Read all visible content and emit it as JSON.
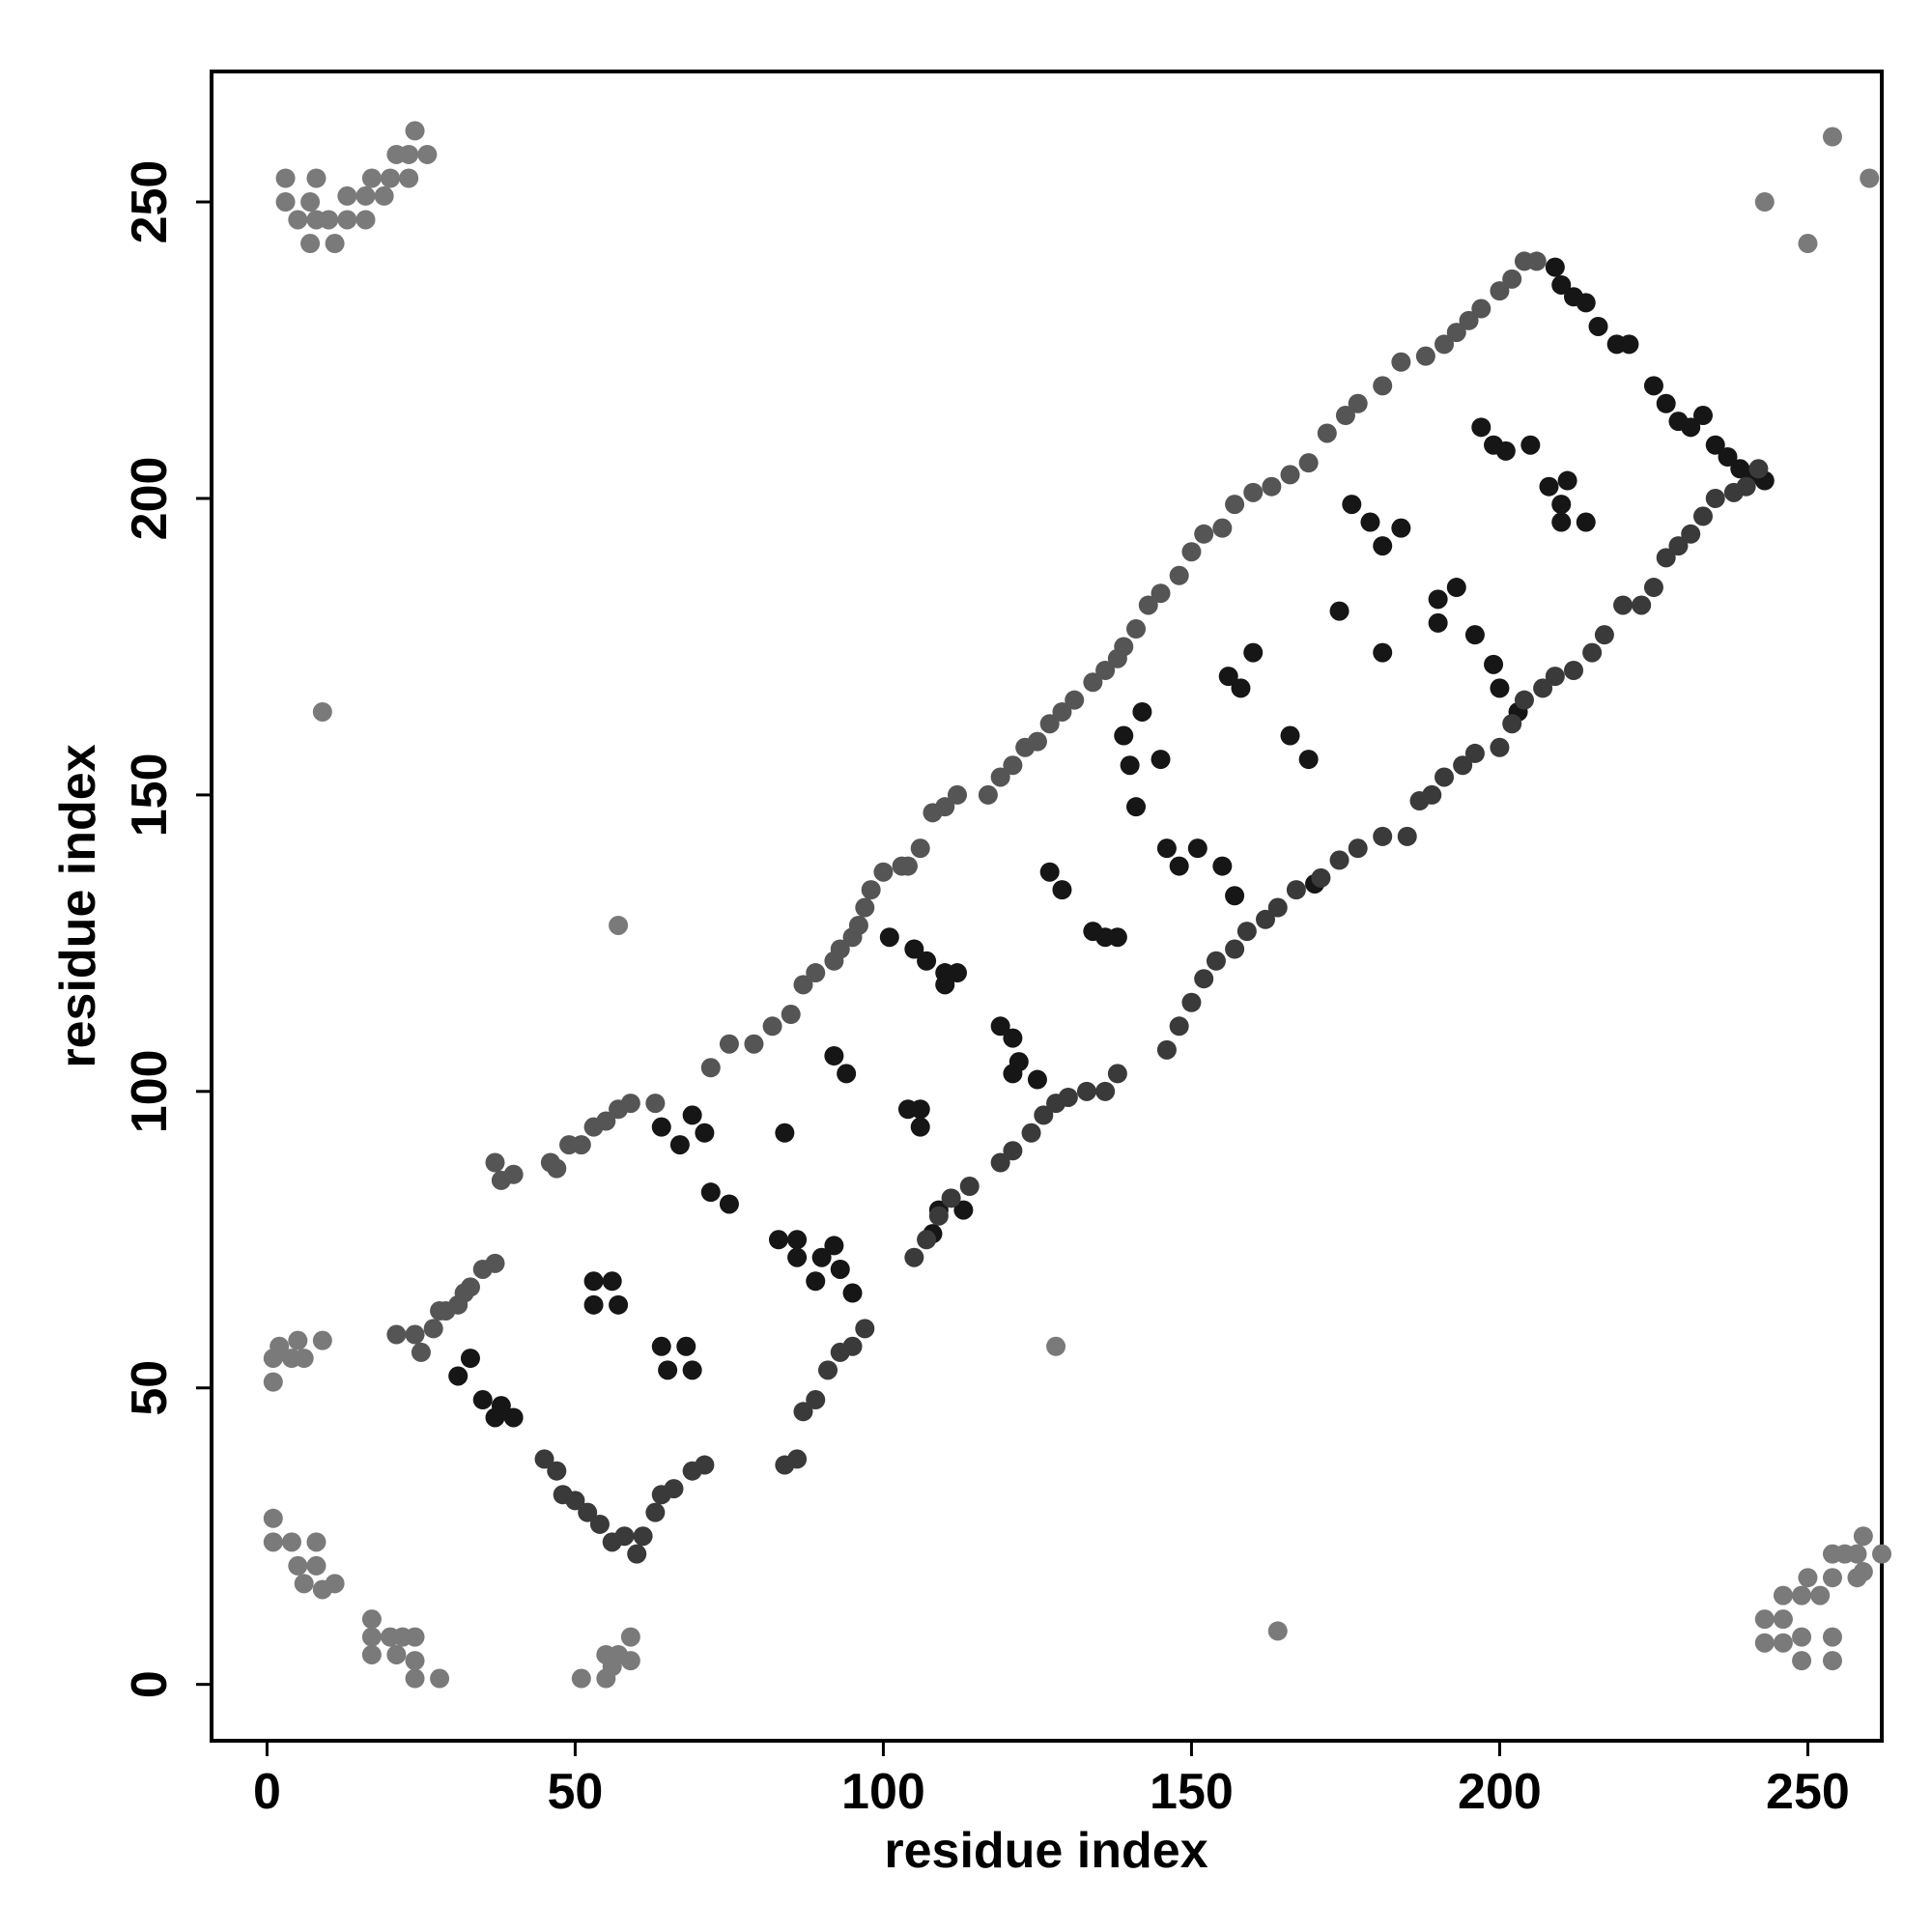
{
  "chart_data": {
    "type": "scatter",
    "xlabel": "residue index",
    "ylabel": "residue index",
    "xlim": [
      -9,
      262
    ],
    "ylim": [
      -9.5,
      272
    ],
    "xticks": [
      0,
      50,
      100,
      150,
      200,
      250
    ],
    "yticks": [
      0,
      50,
      100,
      150,
      200,
      250
    ],
    "series": [
      {
        "color": "#161616",
        "x": [
          31,
          33,
          35,
          37,
          38,
          40,
          53,
          53,
          56,
          57,
          64,
          65,
          68,
          69,
          64,
          67,
          69,
          71,
          72,
          75,
          83,
          86,
          86,
          89,
          90,
          92,
          93,
          95,
          84,
          92,
          94,
          104,
          106,
          106,
          108,
          109,
          113,
          101,
          105,
          107,
          110,
          112,
          110,
          119,
          121,
          122,
          125,
          121,
          127,
          129,
          134,
          136,
          138,
          139,
          140,
          141,
          145,
          142,
          146,
          148,
          151,
          155,
          157,
          156,
          158,
          160,
          166,
          169,
          170,
          174,
          181,
          176,
          179,
          181,
          184,
          190,
          190,
          193,
          196,
          199,
          200,
          203,
          197,
          199,
          201,
          205,
          208,
          210,
          211,
          210,
          214,
          209,
          210,
          212,
          214,
          216,
          219,
          221,
          225,
          227,
          229,
          231,
          233,
          235,
          237,
          239,
          241,
          243
        ],
        "values": [
          52,
          55,
          48,
          45,
          47,
          45,
          68,
          64,
          68,
          64,
          57,
          53,
          57,
          53,
          94,
          91,
          96,
          93,
          83,
          81,
          75,
          75,
          72,
          68,
          72,
          74,
          70,
          66,
          93,
          106,
          103,
          97,
          94,
          97,
          76,
          80,
          80,
          126,
          124,
          122,
          120,
          120,
          118,
          111,
          109,
          105,
          102,
          103,
          137,
          134,
          127,
          126,
          126,
          160,
          155,
          148,
          156,
          164,
          141,
          138,
          141,
          138,
          133,
          170,
          168,
          174,
          160,
          156,
          135,
          181,
          174,
          199,
          196,
          192,
          195,
          183,
          179,
          185,
          177,
          172,
          168,
          164,
          212,
          209,
          208,
          209,
          202,
          199,
          203,
          196,
          196,
          239,
          236,
          234,
          233,
          229,
          226,
          226,
          219,
          216,
          213,
          212,
          214,
          209,
          207,
          205,
          204,
          203
        ]
      },
      {
        "color": "#3a3a3a",
        "x": [
          45,
          47,
          48,
          50,
          52,
          54,
          56,
          58,
          60,
          61,
          63,
          64,
          66,
          69,
          71,
          84,
          86,
          87,
          89,
          91,
          93,
          95,
          97,
          105,
          107,
          109,
          111,
          114,
          119,
          121,
          124,
          126,
          128,
          130,
          133,
          136,
          138,
          146,
          148,
          150,
          152,
          154,
          157,
          159,
          162,
          164,
          167,
          171,
          174,
          177,
          181,
          185,
          187,
          189,
          191,
          194,
          196,
          200,
          202,
          204,
          207,
          209,
          212,
          215,
          217,
          220,
          223,
          225,
          227,
          229,
          231,
          233,
          235,
          238,
          240,
          242
        ],
        "values": [
          38,
          36,
          32,
          31,
          29,
          27,
          24,
          25,
          22,
          25,
          29,
          32,
          33,
          36,
          37,
          37,
          38,
          46,
          48,
          53,
          56,
          57,
          60,
          72,
          75,
          79,
          82,
          84,
          88,
          90,
          93,
          96,
          98,
          99,
          100,
          100,
          103,
          107,
          111,
          115,
          119,
          122,
          124,
          127,
          129,
          131,
          134,
          136,
          139,
          141,
          143,
          143,
          149,
          150,
          153,
          155,
          157,
          158,
          162,
          166,
          168,
          170,
          171,
          174,
          177,
          182,
          182,
          185,
          190,
          192,
          194,
          197,
          200,
          201,
          202,
          205
        ]
      },
      {
        "color": "#555555",
        "x": [
          21,
          24,
          25,
          27,
          28,
          29,
          31,
          32,
          33,
          35,
          37,
          37,
          38,
          40,
          46,
          47,
          49,
          51,
          53,
          55,
          57,
          59,
          63,
          72,
          75,
          79,
          82,
          85,
          87,
          89,
          92,
          93,
          95,
          96,
          97,
          98,
          100,
          103,
          104,
          106,
          108,
          110,
          112,
          117,
          119,
          121,
          123,
          125,
          127,
          129,
          131,
          134,
          136,
          138,
          139,
          141,
          143,
          145,
          148,
          150,
          152,
          155,
          157,
          160,
          163,
          166,
          169,
          172,
          175,
          177,
          181,
          184,
          188,
          191,
          193,
          195,
          197,
          200,
          202,
          204,
          206
        ],
        "values": [
          59,
          59,
          56,
          60,
          63,
          63,
          64,
          66,
          67,
          70,
          71,
          88,
          85,
          86,
          88,
          87,
          91,
          91,
          94,
          95,
          97,
          98,
          98,
          104,
          108,
          108,
          111,
          113,
          118,
          120,
          122,
          124,
          126,
          128,
          131,
          134,
          137,
          138,
          138,
          141,
          147,
          148,
          150,
          150,
          153,
          155,
          158,
          159,
          162,
          164,
          166,
          169,
          171,
          173,
          175,
          178,
          182,
          184,
          187,
          191,
          194,
          195,
          199,
          201,
          202,
          204,
          206,
          211,
          214,
          216,
          219,
          223,
          224,
          226,
          228,
          230,
          232,
          235,
          237,
          240,
          240
        ]
      },
      {
        "color": "#7a7a7a",
        "x": [
          3,
          3,
          5,
          8,
          7,
          8,
          7,
          11,
          10,
          13,
          13,
          16,
          16,
          17,
          20,
          19,
          21,
          23,
          24,
          23,
          26,
          243,
          254,
          250,
          260,
          9,
          57,
          128,
          164,
          1,
          1,
          2,
          4,
          5,
          6,
          9,
          1,
          1,
          4,
          5,
          6,
          8,
          8,
          9,
          11,
          17,
          17,
          17,
          20,
          21,
          22,
          24,
          24,
          24,
          28,
          51,
          55,
          55,
          57,
          59,
          59,
          56,
          243,
          243,
          246,
          246,
          246,
          249,
          249,
          249,
          250,
          252,
          254,
          254,
          254,
          254,
          256,
          258,
          259,
          259,
          262,
          258
        ],
        "values": [
          254,
          250,
          247,
          254,
          250,
          247,
          243,
          243,
          247,
          247,
          251,
          247,
          251,
          254,
          254,
          251,
          258,
          258,
          262,
          254,
          258,
          250,
          261,
          243,
          254,
          164,
          128,
          57,
          9,
          51,
          55,
          57,
          55,
          58,
          55,
          58,
          28,
          24,
          24,
          20,
          17,
          20,
          24,
          16,
          17,
          8,
          11,
          5,
          8,
          5,
          8,
          8,
          4,
          1,
          1,
          1,
          1,
          5,
          5,
          4,
          8,
          3,
          11,
          7,
          7,
          11,
          15,
          4,
          8,
          15,
          18,
          15,
          22,
          18,
          8,
          4,
          22,
          22,
          19,
          25,
          22,
          18
        ]
      }
    ]
  }
}
